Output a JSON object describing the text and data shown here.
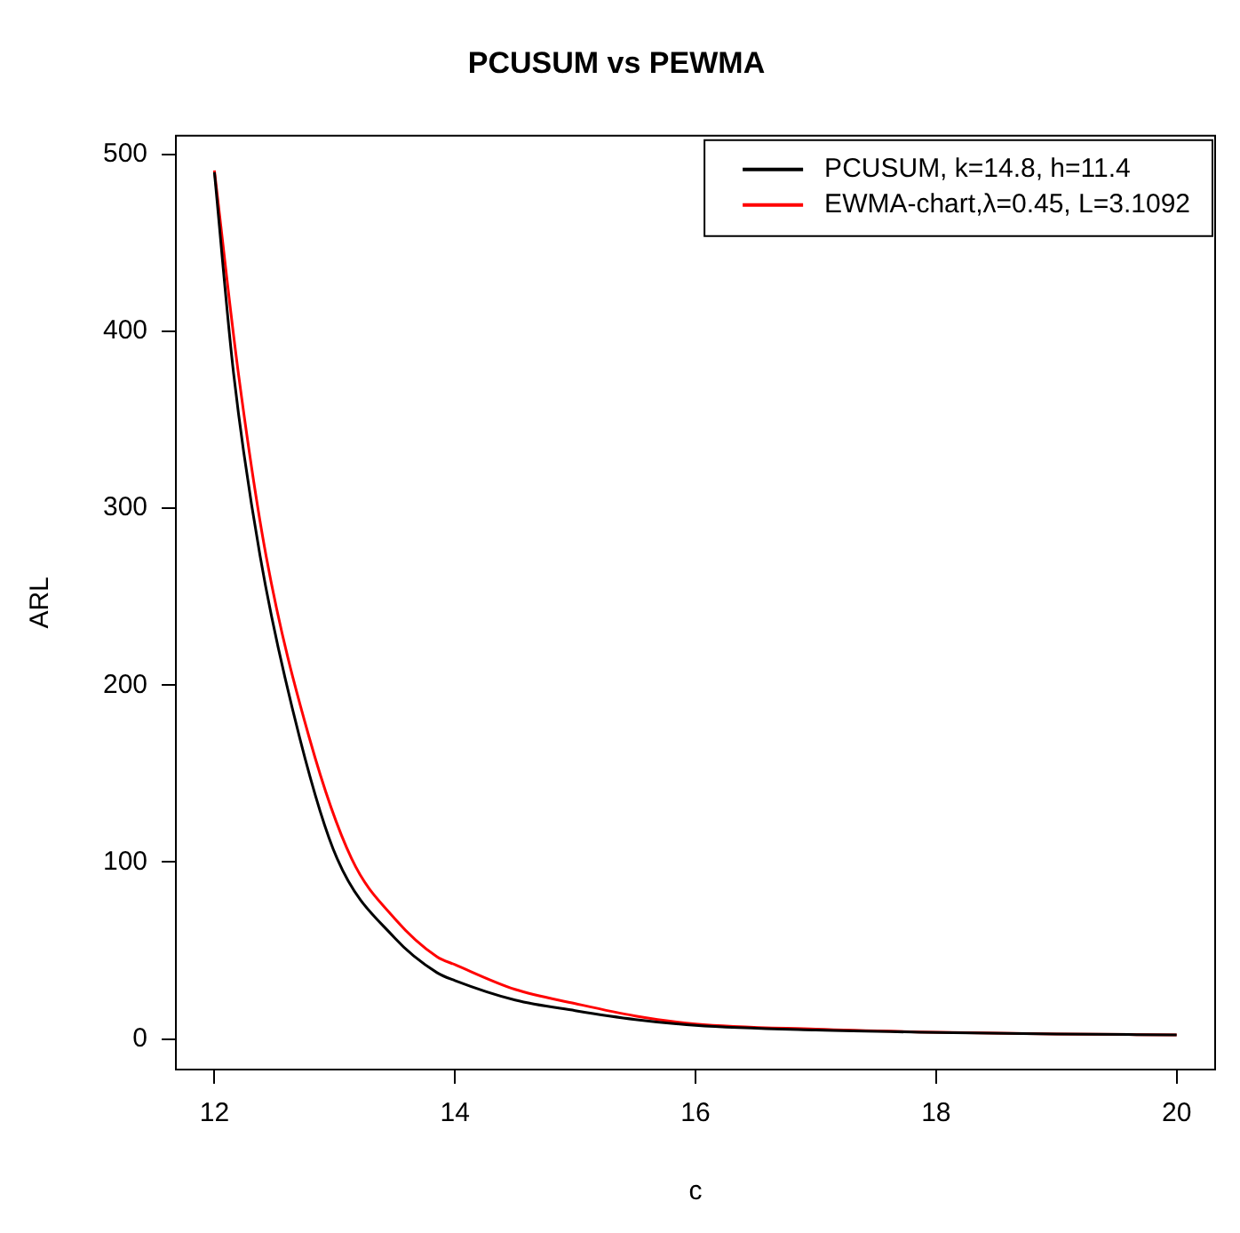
{
  "chart_data": {
    "type": "line",
    "title": "PCUSUM vs PEWMA",
    "xlabel": "c",
    "ylabel": "ARL",
    "xlim": [
      11.68,
      20.32
    ],
    "xticks": [
      12,
      14,
      16,
      18,
      20
    ],
    "ylim": [
      -17.3,
      510.6
    ],
    "yticks": [
      0,
      100,
      200,
      300,
      400,
      500
    ],
    "grid": false,
    "legend": "top right",
    "marker": "none",
    "line_style": "solid",
    "series": [
      {
        "name": "PCUSUM, k=14.8, h=11.4",
        "color": "#000000",
        "x": [
          12,
          12.16,
          12.38,
          12.71,
          13.02,
          13.5,
          13.85,
          14,
          14.5,
          15,
          15.5,
          16,
          17,
          18,
          19,
          20
        ],
        "values": [
          490,
          376,
          273,
          170,
          102,
          57,
          37.5,
          33,
          22,
          16,
          11,
          7.7,
          5,
          3.7,
          2.8,
          2.3
        ]
      },
      {
        "name": "EWMA-chart,λ=0.45, L=3.1092",
        "color": "#ff0000",
        "x": [
          12,
          12.2,
          12.43,
          12.79,
          13.14,
          13.5,
          13.85,
          14,
          14.5,
          15,
          15.5,
          16,
          17,
          18,
          19,
          20
        ],
        "values": [
          491,
          376,
          273,
          170,
          102,
          68,
          46.5,
          42,
          28,
          20,
          13,
          8.5,
          5.5,
          3.8,
          2.8,
          2.3
        ]
      }
    ]
  }
}
